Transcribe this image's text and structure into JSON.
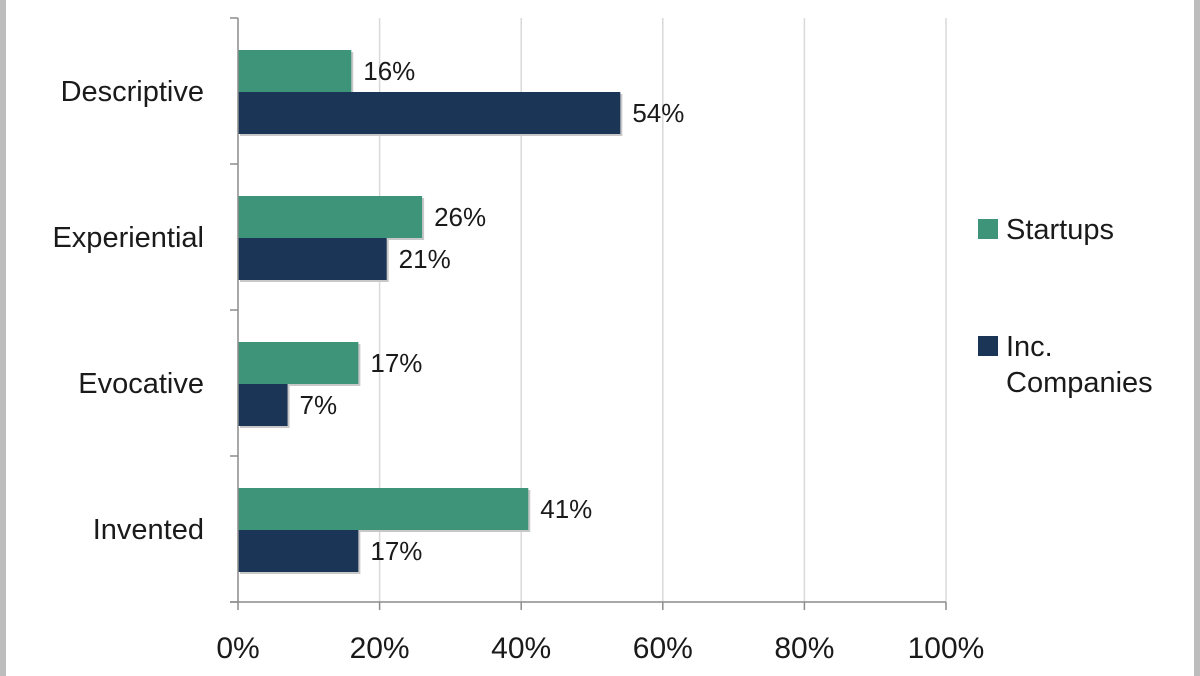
{
  "chart_data": {
    "type": "bar",
    "orientation": "horizontal",
    "categories": [
      "Descriptive",
      "Experiential",
      "Evocative",
      "Invented"
    ],
    "series": [
      {
        "name": "Startups",
        "color": "#3d9479",
        "values": [
          16,
          26,
          17,
          41
        ],
        "labels": [
          "16%",
          "26%",
          "17%",
          "41%"
        ]
      },
      {
        "name": "Inc. Companies",
        "legend_lines": [
          "Inc.",
          "Companies"
        ],
        "color": "#1b3556",
        "values": [
          54,
          21,
          7,
          17
        ],
        "labels": [
          "54%",
          "21%",
          "7%",
          "17%"
        ]
      }
    ],
    "xlim": [
      0,
      100
    ],
    "xticks": [
      0,
      20,
      40,
      60,
      80,
      100
    ],
    "xtick_labels": [
      "0%",
      "20%",
      "40%",
      "60%",
      "80%",
      "100%"
    ],
    "grid": "vertical",
    "legend_position": "right",
    "title": "",
    "xlabel": "",
    "ylabel": ""
  }
}
